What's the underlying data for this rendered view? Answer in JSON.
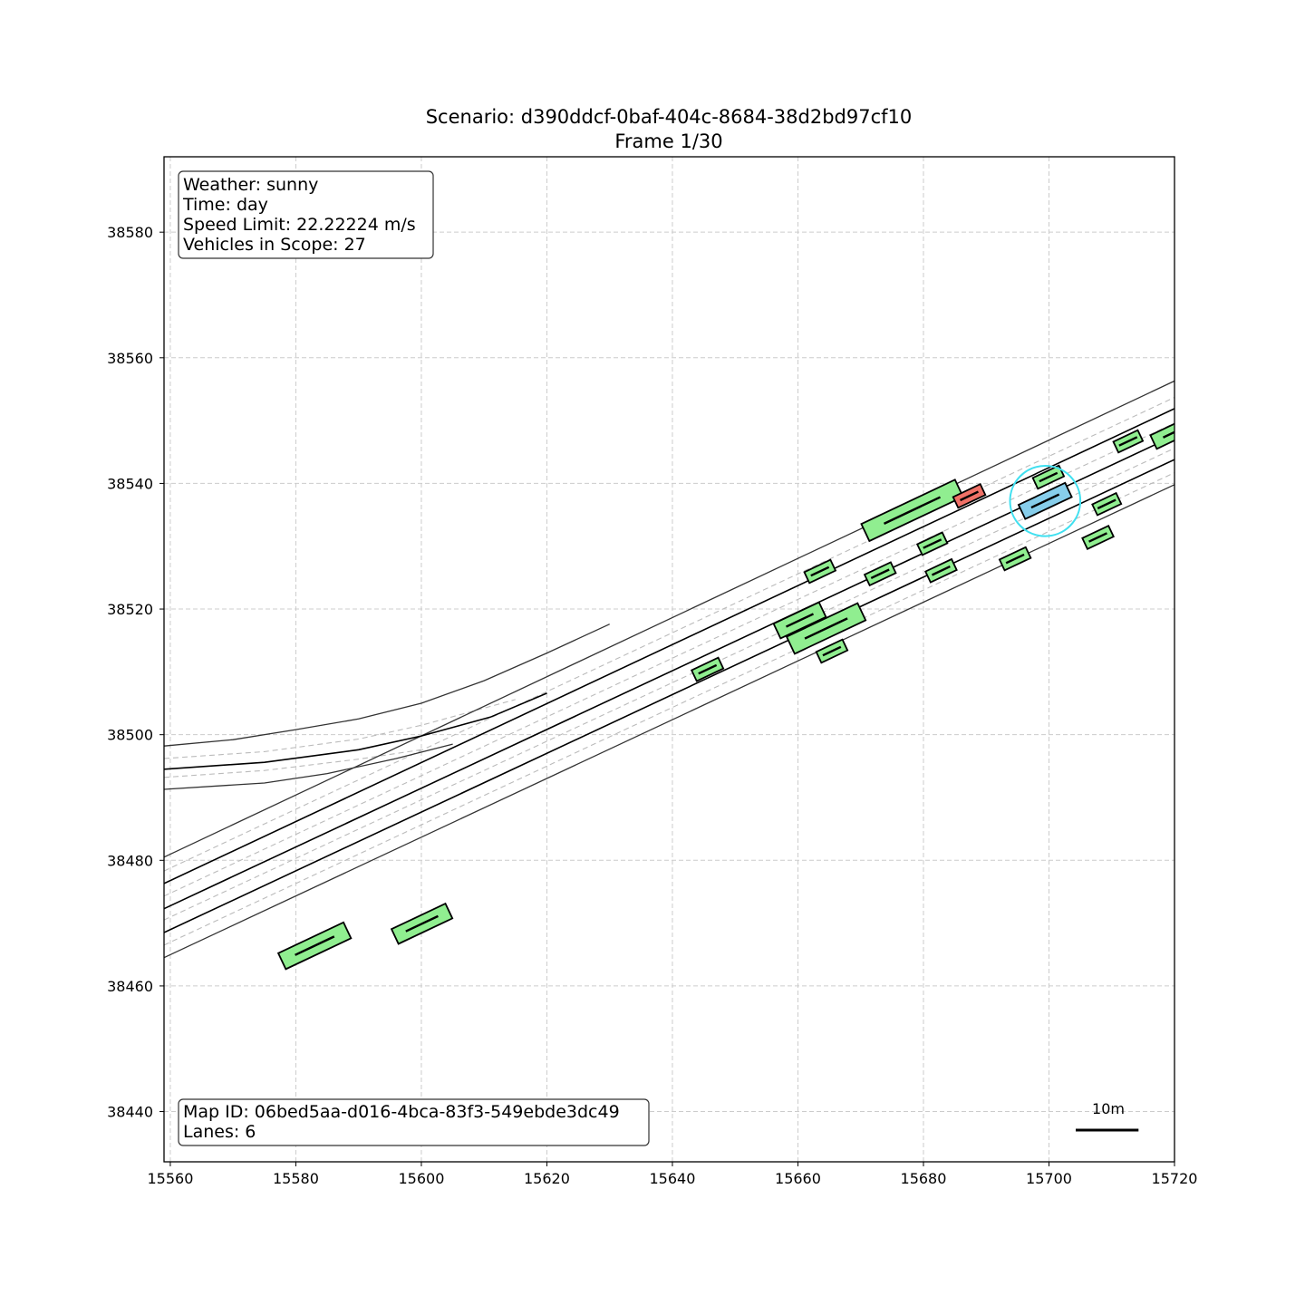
{
  "title": {
    "line1": "Scenario: d390ddcf-0baf-404c-8684-38d2bd97cf10",
    "line2": "Frame 1/30"
  },
  "info_box": {
    "weather": "Weather: sunny",
    "time": "Time: day",
    "speed_limit": "Speed Limit: 22.22224 m/s",
    "vehicles": "Vehicles in Scope: 27"
  },
  "map_box": {
    "map_id": "Map ID: 06bed5aa-d016-4bca-83f3-549ebde3dc49",
    "lanes": "Lanes: 6"
  },
  "scale_bar": {
    "label": "10m",
    "length_m": 10
  },
  "axes": {
    "xlim": [
      15559,
      15720
    ],
    "ylim": [
      38432,
      38592
    ],
    "xticks": [
      15560,
      15580,
      15600,
      15620,
      15640,
      15660,
      15680,
      15700,
      15720
    ],
    "yticks": [
      38440,
      38460,
      38480,
      38500,
      38520,
      38540,
      38560,
      38580
    ],
    "grid": true
  },
  "colors": {
    "vehicle": "#90ee90",
    "ego": "#87ceeb",
    "highlight": "#f07167",
    "ego_circle": "#40e0f0",
    "road_edge": "#333333",
    "lane_boundary": "#000000",
    "lane_center": "#bbbbbb",
    "grid": "#cccccc"
  },
  "chart_data": {
    "type": "map",
    "road_lines": [
      {
        "kind": "edge",
        "points": [
          [
            15559,
            38480.5
          ],
          [
            15720,
            38556.3
          ]
        ]
      },
      {
        "kind": "center",
        "points": [
          [
            15559,
            38478.3
          ],
          [
            15720,
            38553.7
          ]
        ]
      },
      {
        "kind": "boundary",
        "points": [
          [
            15559,
            38476.3
          ],
          [
            15720,
            38551.9
          ]
        ]
      },
      {
        "kind": "center",
        "points": [
          [
            15559,
            38474.3
          ],
          [
            15720,
            38549.6
          ]
        ]
      },
      {
        "kind": "boundary",
        "points": [
          [
            15559,
            38472.3
          ],
          [
            15720,
            38547.6
          ]
        ]
      },
      {
        "kind": "center",
        "points": [
          [
            15559,
            38470.5
          ],
          [
            15720,
            38545.6
          ]
        ]
      },
      {
        "kind": "boundary",
        "points": [
          [
            15559,
            38468.5
          ],
          [
            15720,
            38543.8
          ]
        ]
      },
      {
        "kind": "center",
        "points": [
          [
            15559,
            38466.5
          ],
          [
            15720,
            38541.7
          ]
        ]
      },
      {
        "kind": "edge",
        "points": [
          [
            15559,
            38464.5
          ],
          [
            15720,
            38539.8
          ]
        ]
      },
      {
        "kind": "edge",
        "points": [
          [
            15559,
            38498.2
          ],
          [
            15570,
            38499.2
          ],
          [
            15580,
            38500.8
          ],
          [
            15590,
            38502.5
          ],
          [
            15600,
            38505
          ],
          [
            15610,
            38508.6
          ],
          [
            15620,
            38513
          ],
          [
            15630,
            38517.6
          ]
        ]
      },
      {
        "kind": "center",
        "points": [
          [
            15559,
            38496.2
          ],
          [
            15575,
            38497.3
          ],
          [
            15590,
            38499.3
          ],
          [
            15600,
            38501.5
          ],
          [
            15615,
            38505.6
          ]
        ]
      },
      {
        "kind": "boundary",
        "points": [
          [
            15559,
            38494.5
          ],
          [
            15575,
            38495.6
          ],
          [
            15590,
            38497.6
          ],
          [
            15600,
            38499.8
          ],
          [
            15611,
            38502.8
          ],
          [
            15620,
            38506.6
          ]
        ]
      },
      {
        "kind": "center",
        "points": [
          [
            15559,
            38493.2
          ],
          [
            15575,
            38494.3
          ],
          [
            15590,
            38496.1
          ],
          [
            15600,
            38497.6
          ]
        ]
      },
      {
        "kind": "edge",
        "points": [
          [
            15559,
            38491.3
          ],
          [
            15575,
            38492.3
          ],
          [
            15585,
            38493.8
          ],
          [
            15596,
            38496.2
          ],
          [
            15605,
            38498.5
          ]
        ]
      }
    ],
    "vehicles": [
      {
        "x": 15583.0,
        "y": 38466.4,
        "length": 11.5,
        "width": 2.8,
        "heading_deg": 25.3,
        "type": "vehicle"
      },
      {
        "x": 15600.1,
        "y": 38469.9,
        "length": 9.5,
        "width": 2.6,
        "heading_deg": 25.3,
        "type": "vehicle"
      },
      {
        "x": 15645.6,
        "y": 38510.4,
        "length": 4.7,
        "width": 1.9,
        "heading_deg": 25.3,
        "type": "vehicle"
      },
      {
        "x": 15660.3,
        "y": 38518.2,
        "length": 8.0,
        "width": 2.6,
        "heading_deg": 25.3,
        "type": "vehicle"
      },
      {
        "x": 15664.5,
        "y": 38516.9,
        "length": 12.5,
        "width": 3.0,
        "heading_deg": 25.3,
        "type": "vehicle"
      },
      {
        "x": 15665.4,
        "y": 38513.3,
        "length": 4.6,
        "width": 1.9,
        "heading_deg": 25.3,
        "type": "vehicle"
      },
      {
        "x": 15663.5,
        "y": 38526.0,
        "length": 4.6,
        "width": 1.9,
        "heading_deg": 25.3,
        "type": "vehicle"
      },
      {
        "x": 15673.1,
        "y": 38525.6,
        "length": 4.6,
        "width": 1.9,
        "heading_deg": 25.3,
        "type": "vehicle"
      },
      {
        "x": 15678.2,
        "y": 38535.7,
        "length": 16.5,
        "width": 3.0,
        "heading_deg": 25.3,
        "type": "vehicle"
      },
      {
        "x": 15681.4,
        "y": 38530.4,
        "length": 4.4,
        "width": 1.9,
        "heading_deg": 25.3,
        "type": "vehicle"
      },
      {
        "x": 15682.8,
        "y": 38526.1,
        "length": 4.6,
        "width": 1.9,
        "heading_deg": 25.3,
        "type": "vehicle"
      },
      {
        "x": 15687.3,
        "y": 38538.0,
        "length": 4.8,
        "width": 1.9,
        "heading_deg": 25.3,
        "type": "highlight"
      },
      {
        "x": 15694.6,
        "y": 38528.0,
        "length": 4.6,
        "width": 1.9,
        "heading_deg": 25.3,
        "type": "vehicle"
      },
      {
        "x": 15699.4,
        "y": 38537.2,
        "length": 8.2,
        "width": 2.5,
        "heading_deg": 25.3,
        "type": "ego"
      },
      {
        "x": 15699.9,
        "y": 38541.0,
        "length": 4.6,
        "width": 1.9,
        "heading_deg": 25.3,
        "type": "vehicle"
      },
      {
        "x": 15707.8,
        "y": 38531.4,
        "length": 4.6,
        "width": 1.9,
        "heading_deg": 25.3,
        "type": "vehicle"
      },
      {
        "x": 15709.2,
        "y": 38536.7,
        "length": 4.2,
        "width": 1.9,
        "heading_deg": 25.3,
        "type": "vehicle"
      },
      {
        "x": 15712.6,
        "y": 38546.7,
        "length": 4.3,
        "width": 1.9,
        "heading_deg": 25.3,
        "type": "vehicle"
      },
      {
        "x": 15720.5,
        "y": 38548.4,
        "length": 8.5,
        "width": 2.4,
        "heading_deg": 25.3,
        "type": "vehicle"
      }
    ],
    "ego_circle": {
      "x": 15699.4,
      "y": 38537.2,
      "radius": 5.6
    }
  }
}
